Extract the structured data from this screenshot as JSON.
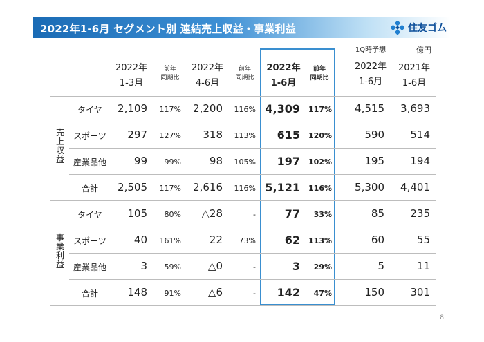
{
  "header": {
    "title": "2022年1-6月 セグメント別 連結売上収益・事業利益",
    "company": "住友ゴム",
    "logo_icon": "diamond-logo-icon"
  },
  "unit": "億円",
  "columns": [
    {
      "lines": [
        "2022年",
        "1-3月"
      ],
      "kind": "value"
    },
    {
      "lines": [
        "前年",
        "同期比"
      ],
      "kind": "ratio"
    },
    {
      "lines": [
        "2022年",
        "4-6月"
      ],
      "kind": "value"
    },
    {
      "lines": [
        "前年",
        "同期比"
      ],
      "kind": "ratio"
    },
    {
      "lines": [
        "2022年",
        "1-6月"
      ],
      "kind": "value",
      "highlight": true
    },
    {
      "lines": [
        "前年",
        "同期比"
      ],
      "kind": "ratio",
      "highlight": true
    },
    {
      "lines": [
        "1Q時予想",
        "2022年",
        "1-6月"
      ],
      "kind": "value"
    },
    {
      "lines": [
        "2021年",
        "1-6月"
      ],
      "kind": "value"
    }
  ],
  "sections": [
    {
      "name": "売上収益",
      "rows": [
        {
          "label": "タイヤ",
          "values": [
            "2,109",
            "117%",
            "2,200",
            "116%",
            "4,309",
            "117%",
            "4,515",
            "3,693"
          ]
        },
        {
          "label": "スポーツ",
          "values": [
            "297",
            "127%",
            "318",
            "113%",
            "615",
            "120%",
            "590",
            "514"
          ]
        },
        {
          "label": "産業品他",
          "values": [
            "99",
            "99%",
            "98",
            "105%",
            "197",
            "102%",
            "195",
            "194"
          ]
        },
        {
          "label": "合計",
          "values": [
            "2,505",
            "117%",
            "2,616",
            "116%",
            "5,121",
            "116%",
            "5,300",
            "4,401"
          ]
        }
      ]
    },
    {
      "name": "事業利益",
      "rows": [
        {
          "label": "タイヤ",
          "values": [
            "105",
            "80%",
            "△28",
            "-",
            "77",
            "33%",
            "85",
            "235"
          ]
        },
        {
          "label": "スポーツ",
          "values": [
            "40",
            "161%",
            "22",
            "73%",
            "62",
            "113%",
            "60",
            "55"
          ]
        },
        {
          "label": "産業品他",
          "values": [
            "3",
            "59%",
            "△0",
            "-",
            "3",
            "29%",
            "5",
            "11"
          ]
        },
        {
          "label": "合計",
          "values": [
            "148",
            "91%",
            "△6",
            "-",
            "142",
            "47%",
            "150",
            "301"
          ]
        }
      ]
    }
  ],
  "page_number": "8",
  "colors": {
    "header_start": "#1a6bb5",
    "highlight_border": "#3a8fd0",
    "logo": "#0d4f9a"
  }
}
